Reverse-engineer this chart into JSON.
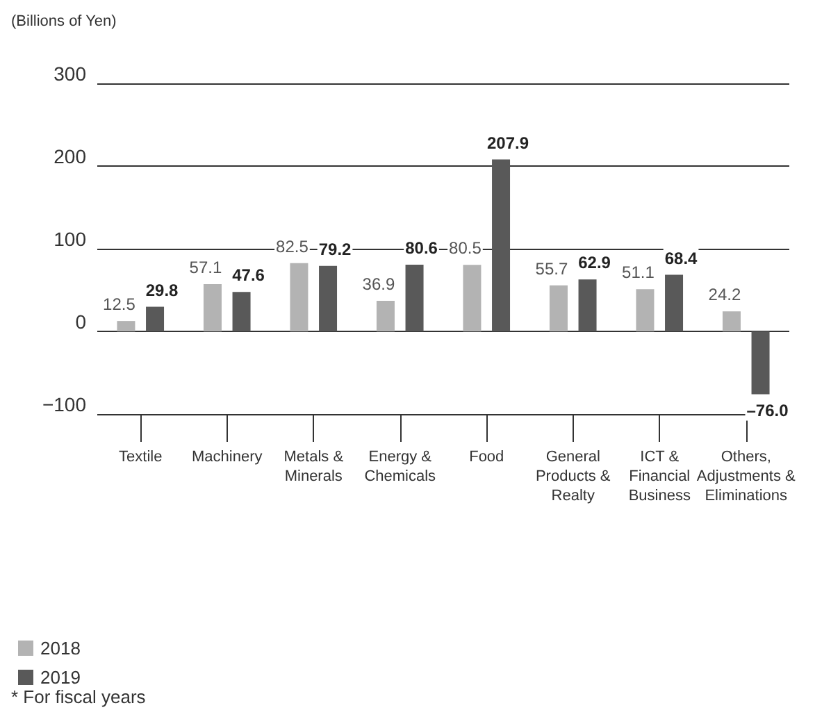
{
  "chart_data": {
    "type": "bar",
    "ylabel": "(Billions of Yen)",
    "categories": [
      "Textile",
      "Machinery",
      "Metals & Minerals",
      "Energy & Chemicals",
      "Food",
      "General Products & Realty",
      "ICT & Financial Business",
      "Others, Adjustments & Eliminations"
    ],
    "series": [
      {
        "name": "2018",
        "color": "#b3b3b3",
        "values": [
          12.5,
          57.1,
          82.5,
          36.9,
          80.5,
          55.7,
          51.1,
          24.2
        ],
        "value_labels": [
          "12.5",
          "57.1",
          "82.5",
          "36.9",
          "80.5",
          "55.7",
          "51.1",
          "24.2"
        ]
      },
      {
        "name": "2019",
        "color": "#595959",
        "values": [
          29.8,
          47.6,
          79.2,
          80.6,
          207.9,
          62.9,
          68.4,
          -76.0
        ],
        "value_labels": [
          "29.8",
          "47.6",
          "79.2",
          "80.6",
          "207.9",
          "62.9",
          "68.4",
          "–76.0"
        ]
      }
    ],
    "ylim": [
      -100,
      300
    ],
    "yticks": [
      {
        "value": -100,
        "label": "−100"
      },
      0,
      100,
      200,
      300
    ],
    "grid": "y",
    "legend": "bottom left",
    "annotations": [
      "* For fiscal years"
    ]
  }
}
